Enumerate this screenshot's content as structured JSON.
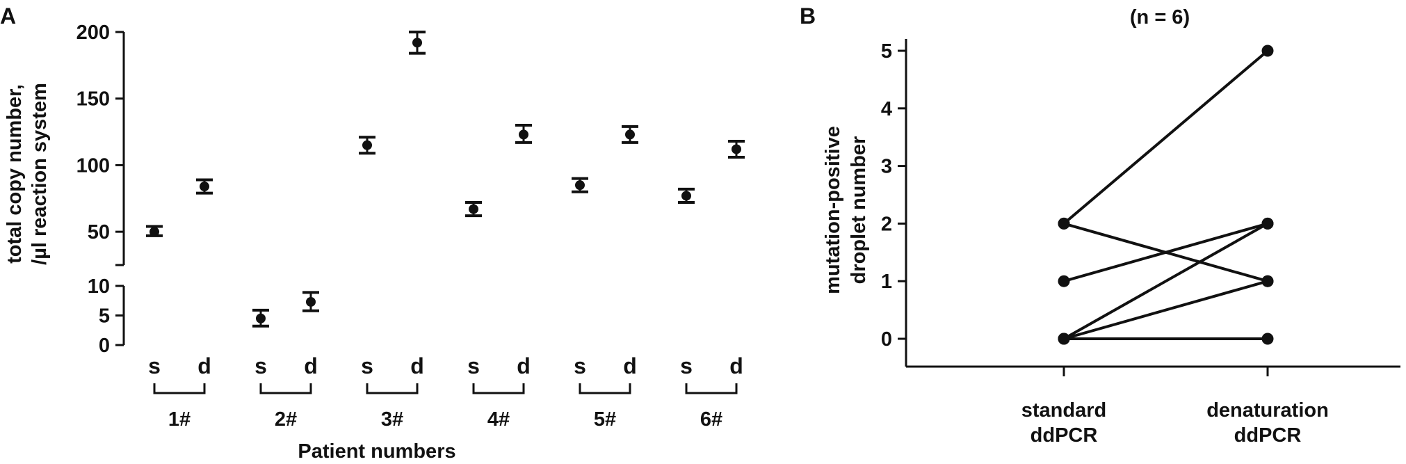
{
  "panel_a": {
    "letter": "A",
    "ylabel_line1": "total copy number,",
    "ylabel_line2": "/µl reaction system",
    "xlabel": "Patient numbers"
  },
  "panel_b": {
    "letter": "B",
    "title": "(n = 6)",
    "ylabel_line1": "mutation-positive",
    "ylabel_line2": "droplet number"
  },
  "colors": {
    "ink": "#111111",
    "background": "#ffffff"
  },
  "chart_data": [
    {
      "type": "scatter",
      "title": "",
      "xlabel": "Patient numbers",
      "ylabel": "total copy number, /µl reaction system",
      "broken_y_axis": true,
      "y_segments": [
        {
          "range": [
            0,
            10
          ],
          "ticks": [
            0,
            5,
            10
          ]
        },
        {
          "range": [
            25,
            200
          ],
          "ticks": [
            50,
            100,
            150,
            200
          ]
        }
      ],
      "groups": [
        "1#",
        "2#",
        "3#",
        "4#",
        "5#",
        "6#"
      ],
      "conditions": [
        "s",
        "d"
      ],
      "points": [
        {
          "group": "1#",
          "condition": "s",
          "mean": 50,
          "lo": 47,
          "hi": 54
        },
        {
          "group": "1#",
          "condition": "d",
          "mean": 84,
          "lo": 79,
          "hi": 89
        },
        {
          "group": "2#",
          "condition": "s",
          "mean": 4.5,
          "lo": 3.2,
          "hi": 5.9
        },
        {
          "group": "2#",
          "condition": "d",
          "mean": 7.3,
          "lo": 5.8,
          "hi": 8.9
        },
        {
          "group": "3#",
          "condition": "s",
          "mean": 115,
          "lo": 109,
          "hi": 121
        },
        {
          "group": "3#",
          "condition": "d",
          "mean": 192,
          "lo": 184,
          "hi": 200
        },
        {
          "group": "4#",
          "condition": "s",
          "mean": 67,
          "lo": 62,
          "hi": 72
        },
        {
          "group": "4#",
          "condition": "d",
          "mean": 123,
          "lo": 117,
          "hi": 130
        },
        {
          "group": "5#",
          "condition": "s",
          "mean": 85,
          "lo": 80,
          "hi": 90
        },
        {
          "group": "5#",
          "condition": "d",
          "mean": 123,
          "lo": 117,
          "hi": 129
        },
        {
          "group": "6#",
          "condition": "s",
          "mean": 77,
          "lo": 72,
          "hi": 82
        },
        {
          "group": "6#",
          "condition": "d",
          "mean": 112,
          "lo": 106,
          "hi": 118
        }
      ]
    },
    {
      "type": "line",
      "title": "(n = 6)",
      "ylabel": "mutation-positive droplet number",
      "categories": [
        "standard ddPCR",
        "denaturation ddPCR"
      ],
      "ylim": [
        0,
        5
      ],
      "yticks": [
        0,
        1,
        2,
        3,
        4,
        5
      ],
      "pairs": [
        {
          "standard": 2,
          "denaturation": 5
        },
        {
          "standard": 2,
          "denaturation": 1
        },
        {
          "standard": 1,
          "denaturation": 2
        },
        {
          "standard": 0,
          "denaturation": 2
        },
        {
          "standard": 0,
          "denaturation": 1
        },
        {
          "standard": 0,
          "denaturation": 0
        }
      ]
    }
  ]
}
